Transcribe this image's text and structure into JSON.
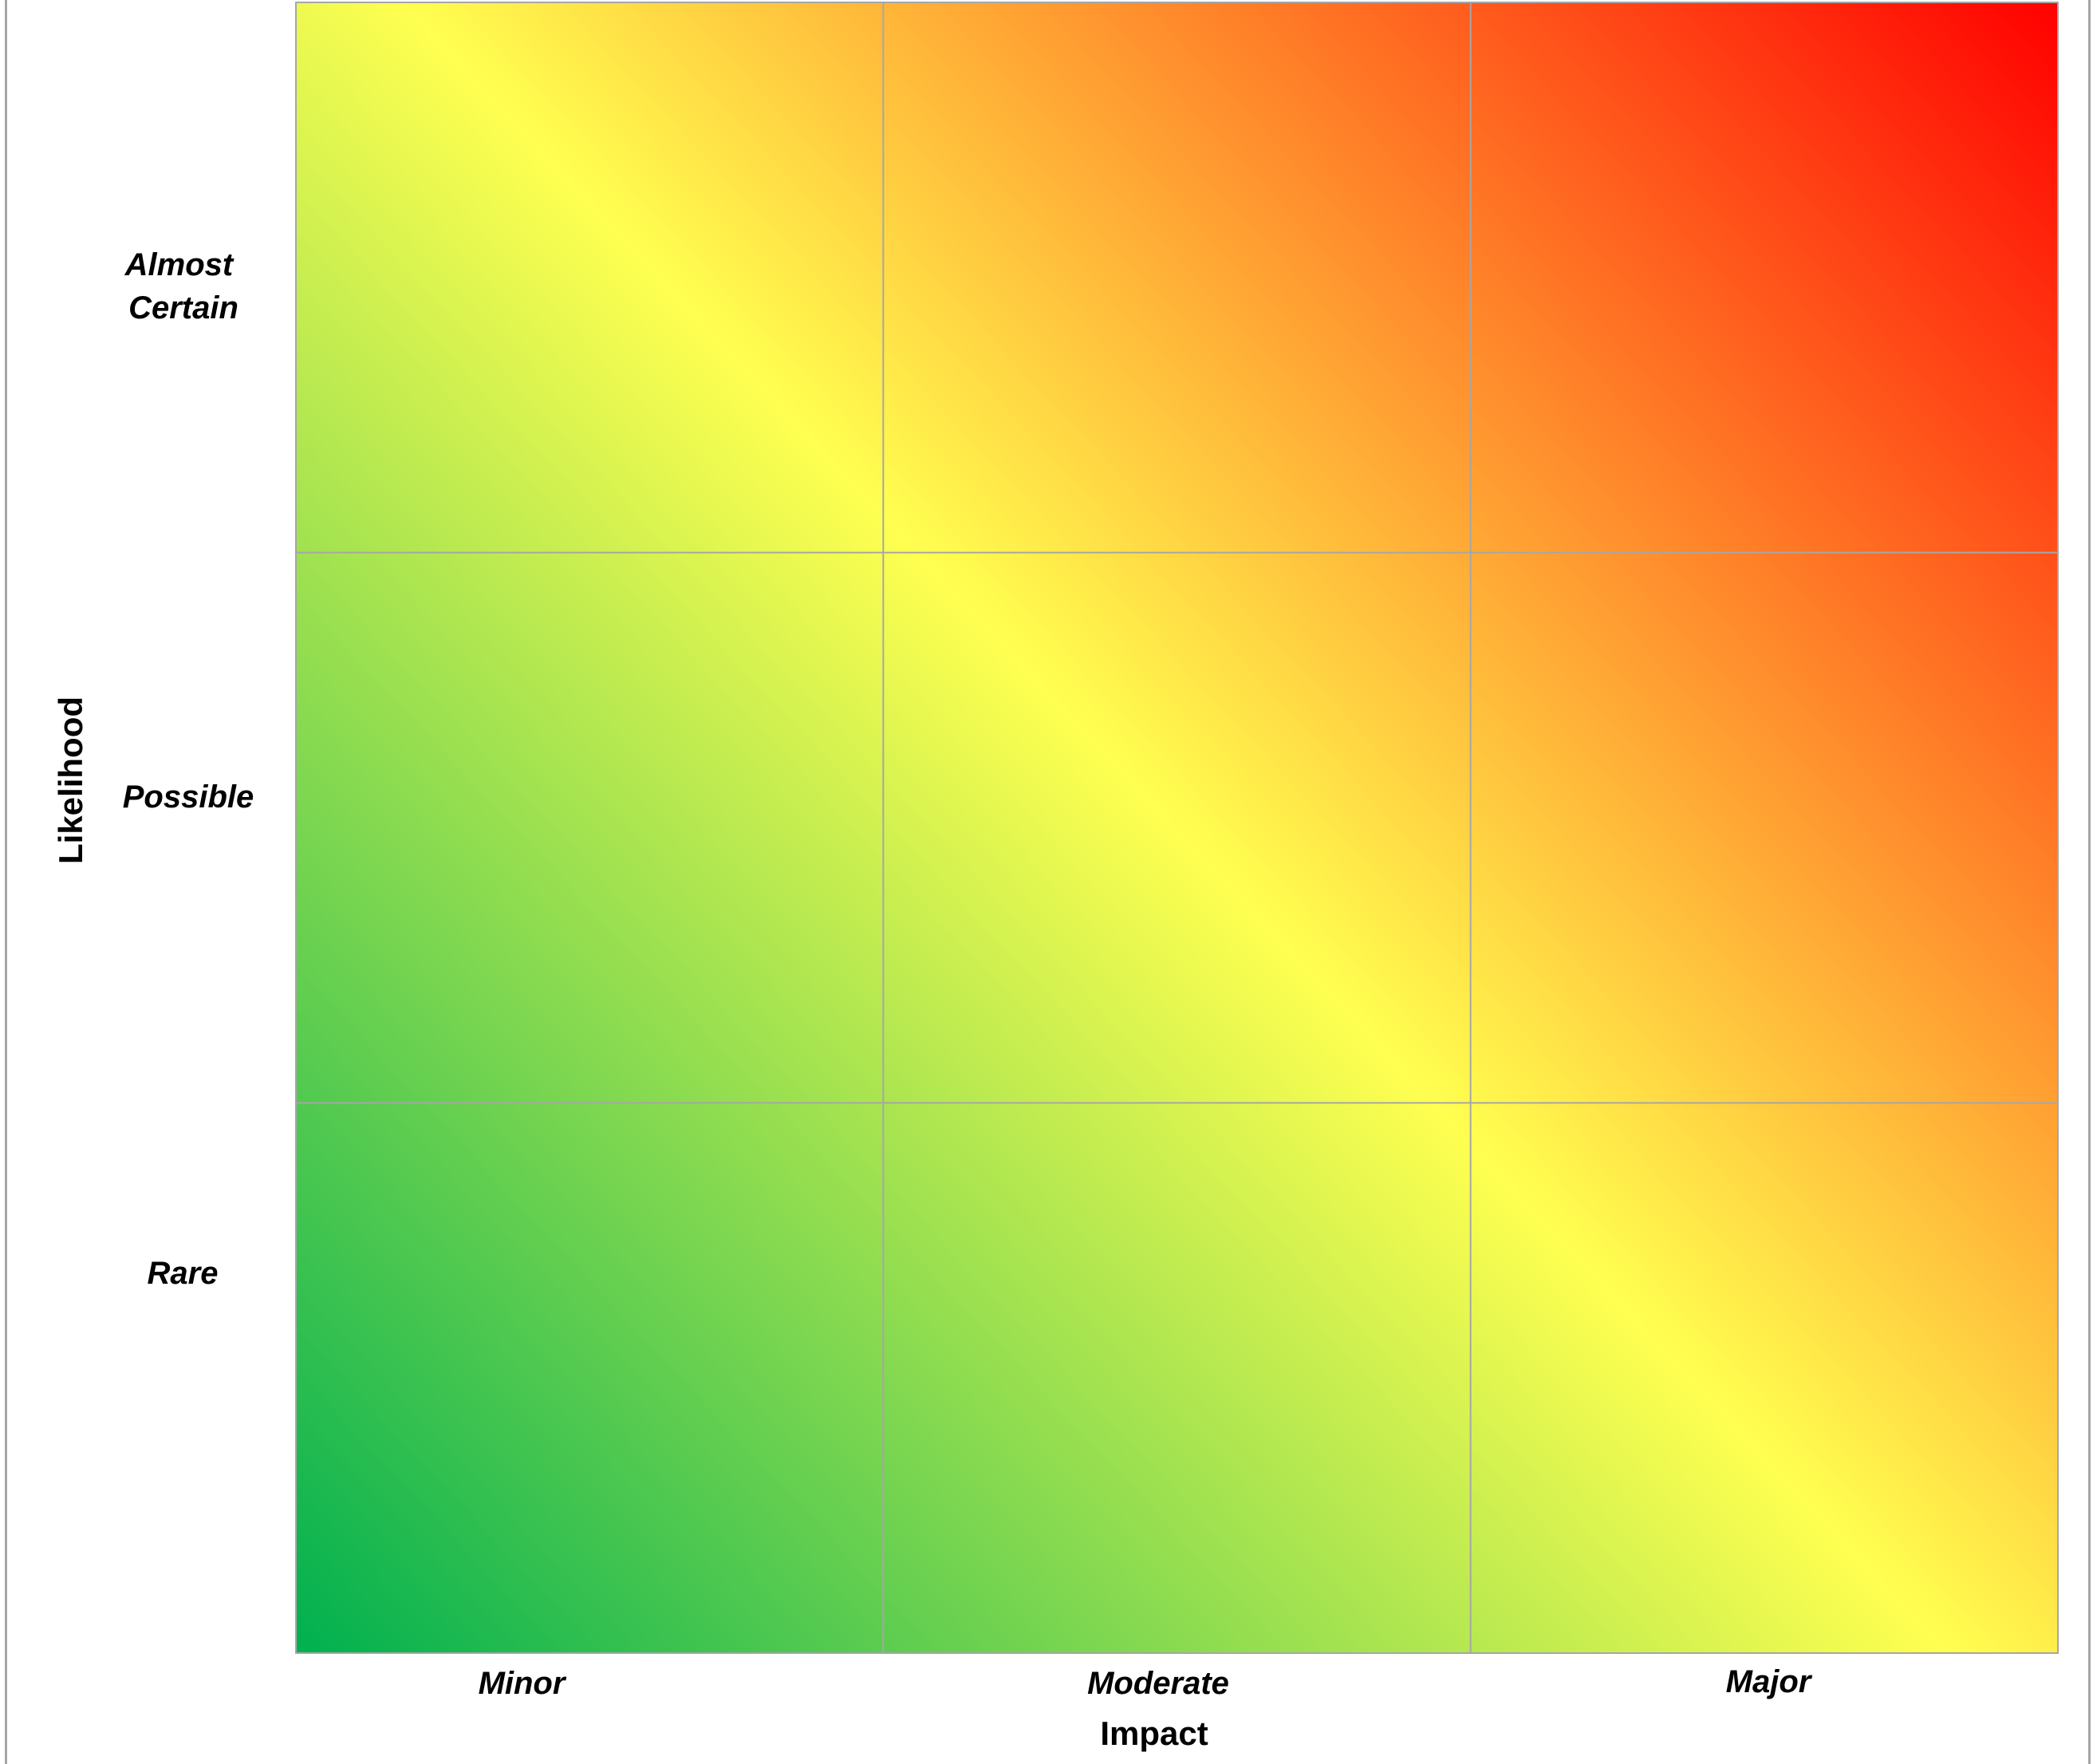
{
  "chart_data": {
    "type": "heatmap",
    "title": "",
    "xlabel": "Impact",
    "ylabel": "Likelihood",
    "x_categories": [
      "Minor",
      "Moderate",
      "Major"
    ],
    "y_categories": [
      "Rare",
      "Possible",
      "Almost Certain"
    ],
    "y_tick_lines": [
      [
        "Almost",
        "Certain"
      ],
      [
        "Possible"
      ],
      [
        "Rare"
      ]
    ],
    "grid": true,
    "legend": "none",
    "color_scale": {
      "low": "#00b050",
      "mid": "#ffff50",
      "high": "#ff0000",
      "direction": "bottom-left to top-right"
    },
    "grid_line_color": "#a6a6a6"
  }
}
